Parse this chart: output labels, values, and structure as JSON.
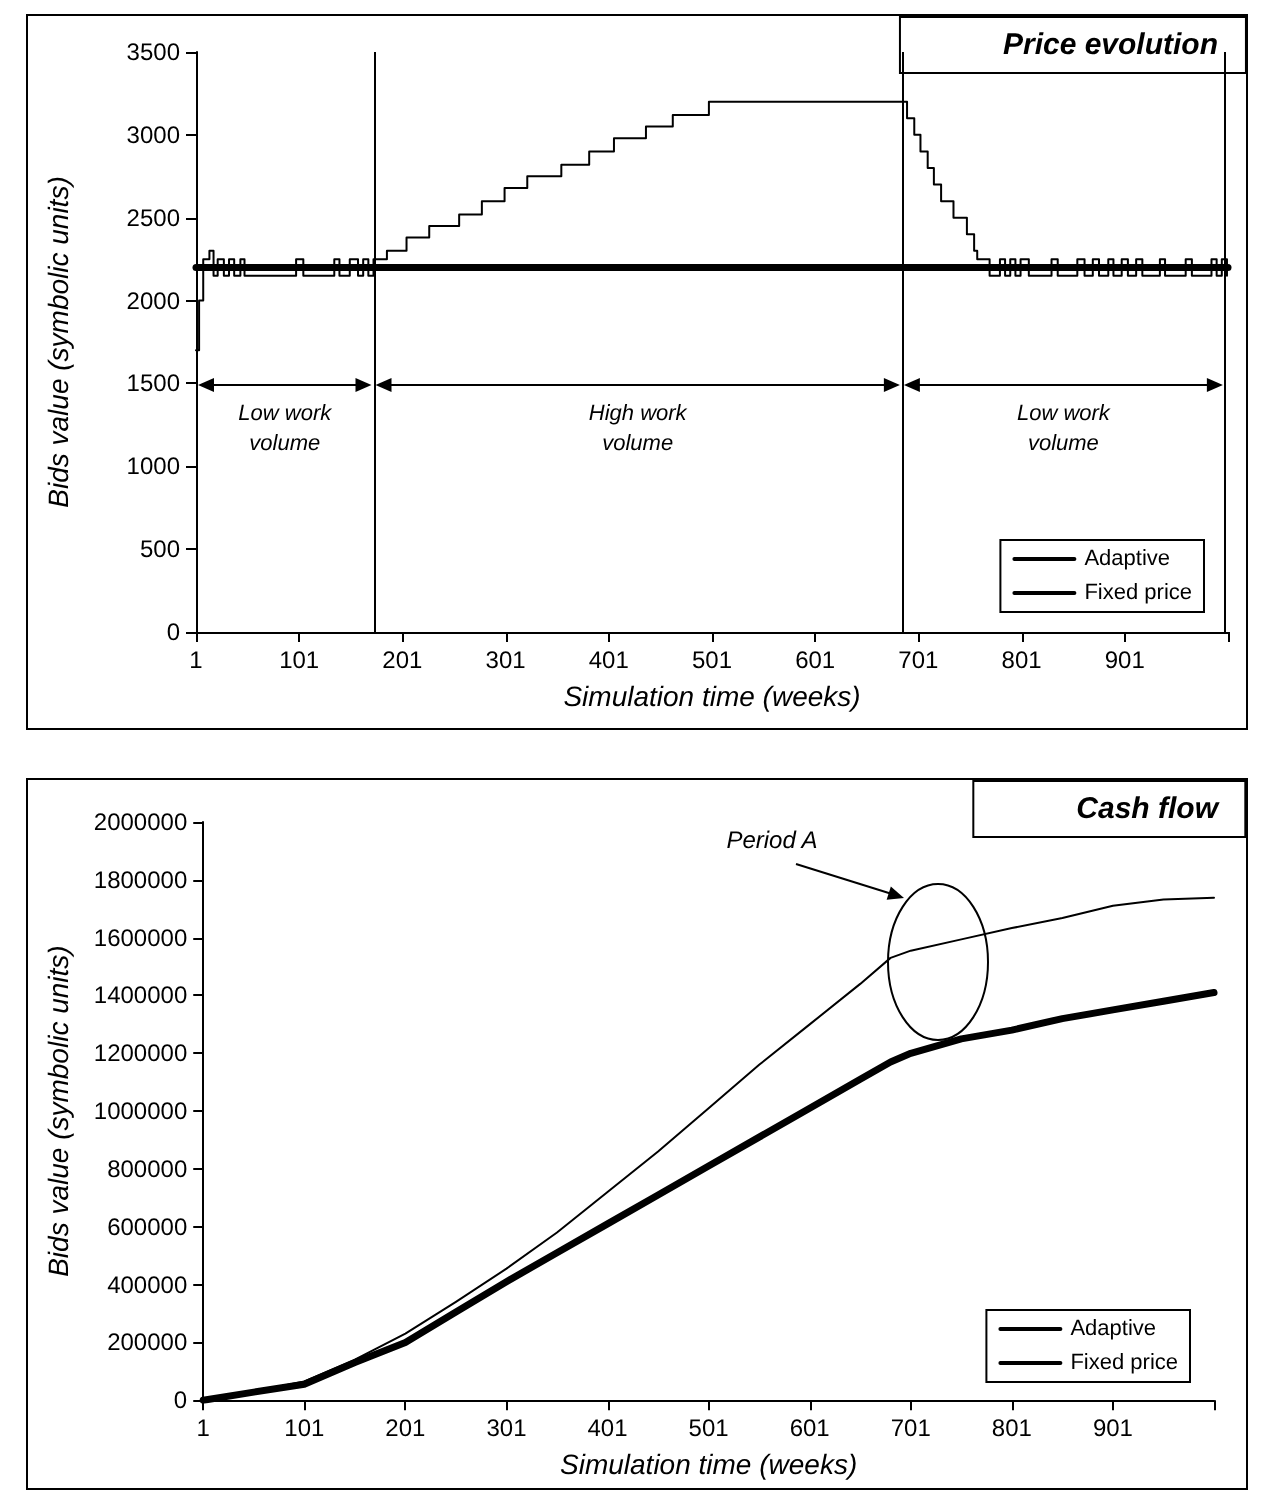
{
  "chart_data": [
    {
      "type": "line",
      "title": "Price evolution",
      "xlabel": "Simulation time (weeks)",
      "ylabel": "Bids value (symbolic units)",
      "xlim": [
        1,
        1001
      ],
      "xticks": [
        1,
        101,
        201,
        301,
        401,
        501,
        601,
        701,
        801,
        901,
        {
          "value": 1001,
          "label": null
        }
      ],
      "ylim": [
        0,
        3500
      ],
      "yticks": [
        0,
        500,
        1000,
        1500,
        2000,
        2500,
        3000,
        3500
      ],
      "series": [
        {
          "name": "Adaptive",
          "type": "step",
          "color": "#000000",
          "x": [
            1,
            4,
            8,
            14,
            18,
            22,
            28,
            33,
            38,
            44,
            48,
            98,
            105,
            135,
            140,
            150,
            158,
            163,
            168,
            173,
            186,
            205,
            227,
            256,
            278,
            300,
            322,
            355,
            382,
            406,
            437,
            463,
            498,
            685,
            690,
            697,
            703,
            710,
            716,
            723,
            735,
            748,
            755,
            758,
            770,
            780,
            785,
            790,
            795,
            800,
            808,
            830,
            836,
            855,
            862,
            870,
            876,
            885,
            890,
            898,
            904,
            912,
            918,
            935,
            940,
            960,
            966,
            985,
            990,
            995,
            1000
          ],
          "values": [
            1700,
            2000,
            2250,
            2300,
            2150,
            2250,
            2150,
            2250,
            2150,
            2250,
            2150,
            2250,
            2150,
            2250,
            2150,
            2250,
            2150,
            2250,
            2150,
            2250,
            2300,
            2380,
            2450,
            2520,
            2600,
            2680,
            2750,
            2820,
            2900,
            2980,
            3050,
            3120,
            3200,
            3200,
            3100,
            3000,
            2900,
            2800,
            2700,
            2600,
            2500,
            2400,
            2300,
            2250,
            2150,
            2250,
            2150,
            2250,
            2150,
            2250,
            2150,
            2250,
            2150,
            2250,
            2150,
            2250,
            2150,
            2250,
            2150,
            2250,
            2150,
            2250,
            2150,
            2250,
            2150,
            2250,
            2150,
            2250,
            2150,
            2250,
            2150
          ]
        },
        {
          "name": "Fixed price",
          "color": "#000000",
          "x": [
            1,
            1001
          ],
          "values": [
            2200,
            2200
          ]
        }
      ],
      "ref_lines": [
        {
          "axis": "x",
          "value": 173
        },
        {
          "axis": "x",
          "value": 685
        },
        {
          "axis": "x",
          "value": 998
        }
      ],
      "annotations": [
        "Low work volume",
        "High work volume",
        "Low work volume"
      ],
      "legend": "bottom right",
      "marker": "none",
      "grid": false
    },
    {
      "type": "line",
      "title": "Cash flow",
      "xlabel": "Simulation time (weeks)",
      "ylabel": "Bids value (symbolic units)",
      "xlim": [
        1,
        1001
      ],
      "xticks": [
        1,
        101,
        201,
        301,
        401,
        501,
        601,
        701,
        801,
        901,
        {
          "value": 1001,
          "label": null
        }
      ],
      "ylim": [
        0,
        2000000
      ],
      "yticks": [
        0,
        200000,
        400000,
        600000,
        800000,
        1000000,
        1200000,
        1400000,
        1600000,
        1800000,
        2000000
      ],
      "x": [
        1,
        51,
        101,
        151,
        201,
        251,
        301,
        351,
        401,
        451,
        501,
        551,
        601,
        651,
        681,
        701,
        751,
        801,
        851,
        901,
        951,
        1001
      ],
      "series": [
        {
          "name": "Adaptive",
          "color": "#000000",
          "values": [
            0,
            30000,
            65000,
            140000,
            230000,
            340000,
            455000,
            580000,
            720000,
            860000,
            1010000,
            1160000,
            1300000,
            1440000,
            1530000,
            1555000,
            1594000,
            1633000,
            1668000,
            1710000,
            1732000,
            1738000
          ]
        },
        {
          "name": "Fixed price",
          "color": "#000000",
          "values": [
            0,
            28000,
            55000,
            130000,
            200000,
            305000,
            410000,
            510000,
            610000,
            710000,
            810000,
            910000,
            1010000,
            1110000,
            1170000,
            1200000,
            1250000,
            1280000,
            1320000,
            1350000,
            1380000,
            1410000
          ]
        }
      ],
      "annotations": [
        "Period A"
      ],
      "legend": "bottom right",
      "marker": "none",
      "grid": false
    }
  ]
}
